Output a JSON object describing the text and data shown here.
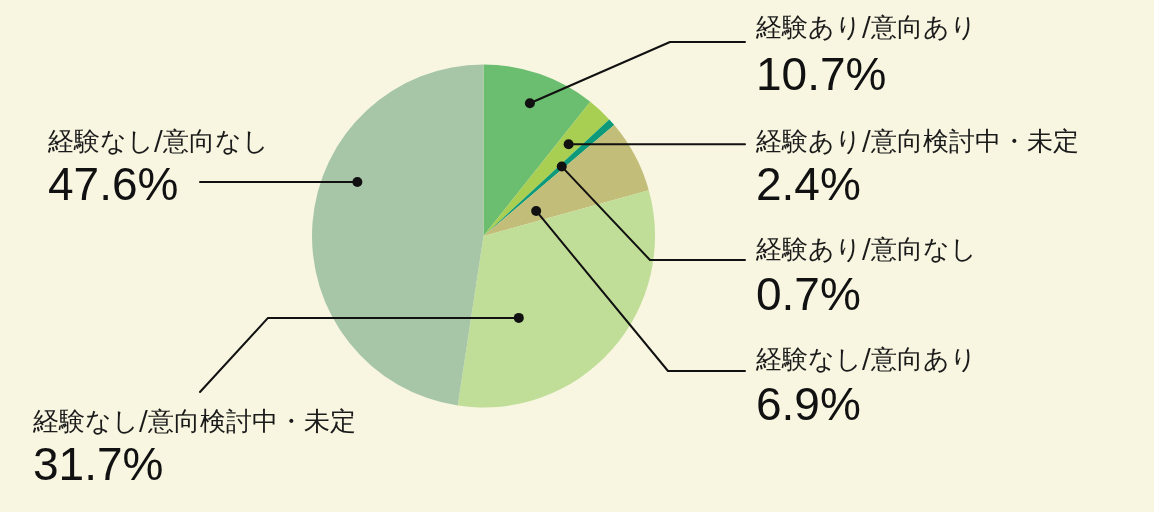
{
  "chart_data": {
    "type": "pie",
    "categories": [
      "経験あり/意向あり",
      "経験あり/意向検討中・未定",
      "経験あり/意向なし",
      "経験なし/意向あり",
      "経験なし/意向検討中・未定",
      "経験なし/意向なし"
    ],
    "values": [
      10.7,
      2.4,
      0.7,
      6.9,
      31.7,
      47.6
    ],
    "colors": [
      "#6bbd6f",
      "#a9cf52",
      "#0d9a7b",
      "#c2bd78",
      "#c0de98",
      "#a7c6a7"
    ],
    "value_labels": [
      "10.7%",
      "2.4%",
      "0.7%",
      "6.9%",
      "31.7%",
      "47.6%"
    ]
  }
}
